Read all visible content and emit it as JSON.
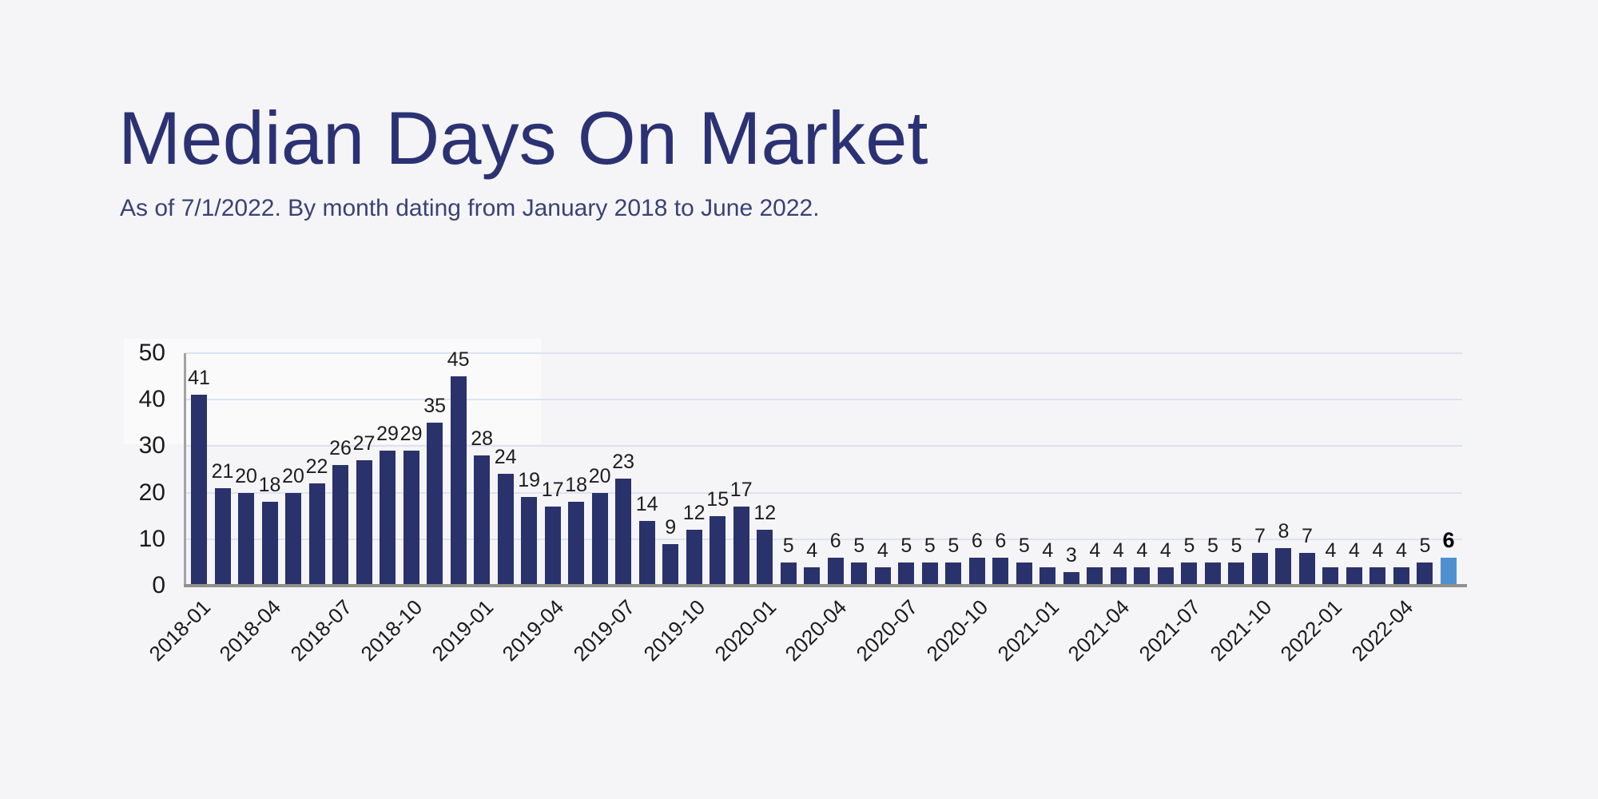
{
  "page": {
    "background": "#f5f5f7"
  },
  "header": {
    "title": "Median Days On Market",
    "subtitle": "As of 7/1/2022. By month dating from January 2018 to June 2022."
  },
  "chart_data": {
    "type": "bar",
    "title": "Median Days On Market",
    "subtitle": "As of 7/1/2022. By month dating from January 2018 to June 2022.",
    "categories": [
      "2018-01",
      "2018-02",
      "2018-03",
      "2018-04",
      "2018-05",
      "2018-06",
      "2018-07",
      "2018-08",
      "2018-09",
      "2018-10",
      "2018-11",
      "2018-12",
      "2019-01",
      "2019-02",
      "2019-03",
      "2019-04",
      "2019-05",
      "2019-06",
      "2019-07",
      "2019-08",
      "2019-09",
      "2019-10",
      "2019-11",
      "2019-12",
      "2020-01",
      "2020-02",
      "2020-03",
      "2020-04",
      "2020-05",
      "2020-06",
      "2020-07",
      "2020-08",
      "2020-09",
      "2020-10",
      "2020-11",
      "2020-12",
      "2021-01",
      "2021-02",
      "2021-03",
      "2021-04",
      "2021-05",
      "2021-06",
      "2021-07",
      "2021-08",
      "2021-09",
      "2021-10",
      "2021-11",
      "2021-12",
      "2022-01",
      "2022-02",
      "2022-03",
      "2022-04",
      "2022-05",
      "2022-06"
    ],
    "values": [
      41,
      21,
      20,
      18,
      20,
      22,
      26,
      27,
      29,
      29,
      35,
      45,
      28,
      24,
      19,
      17,
      18,
      20,
      23,
      14,
      9,
      12,
      15,
      17,
      12,
      5,
      4,
      6,
      5,
      4,
      5,
      5,
      5,
      6,
      6,
      5,
      4,
      3,
      4,
      4,
      4,
      4,
      5,
      5,
      5,
      7,
      8,
      7,
      4,
      4,
      4,
      4,
      5,
      6
    ],
    "value_labels_shown": true,
    "x_tick_labels": [
      "2018-01",
      "2018-04",
      "2018-07",
      "2018-10",
      "2019-01",
      "2019-04",
      "2019-07",
      "2019-10",
      "2020-01",
      "2020-04",
      "2020-07",
      "2020-10",
      "2021-01",
      "2021-04",
      "2021-07",
      "2021-10",
      "2022-01",
      "2022-04"
    ],
    "x_tick_every_n_months": 3,
    "yticks": [
      0,
      10,
      20,
      30,
      40,
      50
    ],
    "ylim": [
      0,
      50
    ],
    "xlabel": "",
    "ylabel": "",
    "grid": "horizontal",
    "legend": "none",
    "bar_color": "#2a326c",
    "highlight_bar": {
      "index": 53,
      "category": "2022-06",
      "value": 6,
      "color": "#4e90d0",
      "label_bold": true
    },
    "gridline_color": "#dbe3f0",
    "axis_line_color": "#91918b"
  }
}
